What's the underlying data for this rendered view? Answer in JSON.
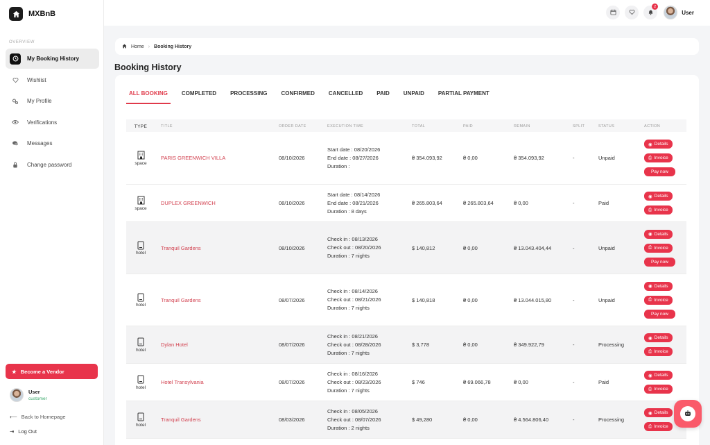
{
  "brand": {
    "name": "MXBnB"
  },
  "sidebar": {
    "section_label": "OVERVIEW",
    "items": [
      {
        "label": "My Booking History",
        "icon": "history-icon"
      },
      {
        "label": "Wishlist",
        "icon": "heart-icon"
      },
      {
        "label": "My Profile",
        "icon": "gears-icon"
      },
      {
        "label": "Verifications",
        "icon": "eye-icon"
      },
      {
        "label": "Messages",
        "icon": "chat-icon"
      },
      {
        "label": "Change password",
        "icon": "lock-icon"
      }
    ],
    "vendor_button": "Become a Vendor",
    "user": {
      "name": "User",
      "role": "customer"
    },
    "back_link": "Back to Homepage",
    "logout": "Log Out"
  },
  "topbar": {
    "notification_count": "2",
    "user_name": "User"
  },
  "breadcrumb": {
    "home": "Home",
    "current": "Booking History"
  },
  "page_title": "Booking History",
  "tabs": [
    "ALL BOOKING",
    "COMPLETED",
    "PROCESSING",
    "CONFIRMED",
    "CANCELLED",
    "PAID",
    "UNPAID",
    "PARTIAL PAYMENT"
  ],
  "table": {
    "headers": [
      "TYPE",
      "TITLE",
      "ORDER DATE",
      "EXECUTION TIME",
      "TOTAL",
      "PAID",
      "REMAIN",
      "SPLIT",
      "STATUS",
      "ACTION"
    ],
    "rows": [
      {
        "type": "space",
        "title": "PARIS GREENWICH VILLA",
        "order_date": "08/10/2026",
        "exec": [
          "Start date : 08/20/2026",
          "End date : 08/27/2026",
          "Duration :"
        ],
        "total": "₴ 354.093,92",
        "paid": "₴ 0,00",
        "remain": "₴ 354.093,92",
        "split": "-",
        "status": "Unpaid",
        "actions": [
          "Details",
          "Invoice",
          "Pay now"
        ]
      },
      {
        "type": "space",
        "title": "DUPLEX GREENWICH",
        "order_date": "08/10/2026",
        "exec": [
          "Start date : 08/14/2026",
          "End date : 08/21/2026",
          "Duration : 8 days"
        ],
        "total": "₴ 265.803,64",
        "paid": "₴ 265.803,64",
        "remain": "₴ 0,00",
        "split": "-",
        "status": "Paid",
        "actions": [
          "Details",
          "Invoice"
        ]
      },
      {
        "type": "hotel",
        "title": "Tranquil Gardens",
        "order_date": "08/10/2026",
        "exec": [
          "Check in : 08/13/2026",
          "Check out : 08/20/2026",
          "Duration : 7 nights"
        ],
        "total": "$ 140,812",
        "paid": "₴ 0,00",
        "remain": "₴ 13.043.404,44",
        "split": "-",
        "status": "Unpaid",
        "actions": [
          "Details",
          "Invoice",
          "Pay now"
        ]
      },
      {
        "type": "hotel",
        "title": "Tranquil Gardens",
        "order_date": "08/07/2026",
        "exec": [
          "Check in : 08/14/2026",
          "Check out : 08/21/2026",
          "Duration : 7 nights"
        ],
        "total": "$ 140,818",
        "paid": "₴ 0,00",
        "remain": "₴ 13.044.015,80",
        "split": "-",
        "status": "Unpaid",
        "actions": [
          "Details",
          "Invoice",
          "Pay now"
        ]
      },
      {
        "type": "hotel",
        "title": "Dylan Hotel",
        "order_date": "08/07/2026",
        "exec": [
          "Check in : 08/21/2026",
          "Check out : 08/28/2026",
          "Duration : 7 nights"
        ],
        "total": "$ 3,778",
        "paid": "₴ 0,00",
        "remain": "₴ 349.922,79",
        "split": "-",
        "status": "Processing",
        "actions": [
          "Details",
          "Invoice"
        ]
      },
      {
        "type": "hotel",
        "title": "Hotel Transylvania",
        "order_date": "08/07/2026",
        "exec": [
          "Check in : 08/16/2026",
          "Check out : 08/23/2026",
          "Duration : 7 nights"
        ],
        "total": "$ 746",
        "paid": "₴ 69.066,78",
        "remain": "₴ 0,00",
        "split": "-",
        "status": "Paid",
        "actions": [
          "Details",
          "Invoice"
        ]
      },
      {
        "type": "hotel",
        "title": "Tranquil Gardens",
        "order_date": "08/03/2026",
        "exec": [
          "Check in : 08/05/2026",
          "Check out : 08/07/2026",
          "Duration : 2 nights"
        ],
        "total": "$ 49,280",
        "paid": "₴ 0,00",
        "remain": "₴ 4.564.806,40",
        "split": "-",
        "status": "Processing",
        "actions": [
          "Details",
          "Invoice"
        ]
      }
    ]
  },
  "colors": {
    "accent": "#e8344b",
    "title_link": "#d2414f",
    "active_nav": "#111111"
  }
}
